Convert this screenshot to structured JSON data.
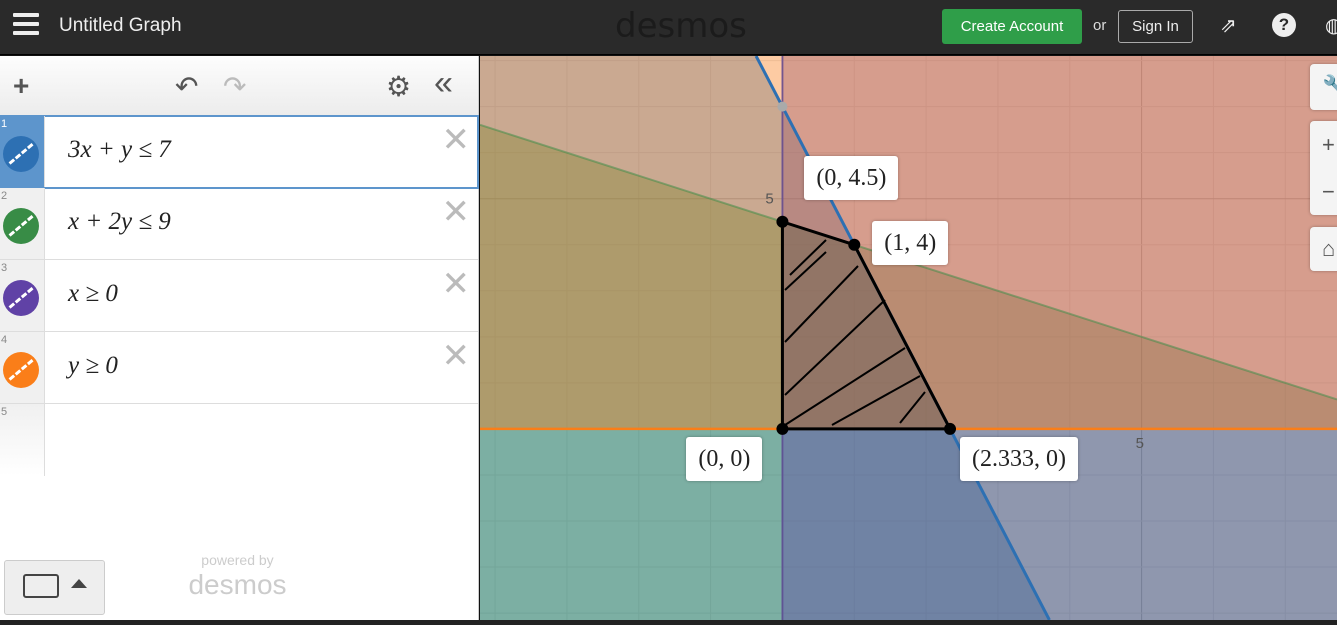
{
  "header": {
    "title": "Untitled Graph",
    "logo": "desmos",
    "create_account": "Create Account",
    "or": "or",
    "sign_in": "Sign In",
    "icons": [
      "menu-icon",
      "share-icon",
      "help-icon"
    ]
  },
  "toolbar": {
    "add": "+",
    "undo": "↶",
    "redo": "↷",
    "settings": "⚙",
    "collapse": "«"
  },
  "expressions": [
    {
      "n": "1",
      "latex": "3x + y ≤ 7",
      "color": "#2d70b3"
    },
    {
      "n": "2",
      "latex": "x + 2y ≤ 9",
      "color": "#388c46"
    },
    {
      "n": "3",
      "latex": "x ≥ 0",
      "color": "#6042a6"
    },
    {
      "n": "4",
      "latex": "y ≥ 0",
      "color": "#fa7e19"
    },
    {
      "n": "5",
      "latex": "",
      "color": ""
    }
  ],
  "powered": {
    "line1": "powered by",
    "line2": "desmos"
  },
  "graph": {
    "xlim": [
      -4.21,
      7.72
    ],
    "ylim": [
      -4.15,
      8.1
    ],
    "tick_labels": {
      "x5": "5",
      "y5": "5"
    },
    "points": [
      {
        "label": "(0, 4.5)",
        "x": 0,
        "y": 4.5
      },
      {
        "label": "(1, 4)",
        "x": 1,
        "y": 4
      },
      {
        "label": "(0, 0)",
        "x": 0,
        "y": 0
      },
      {
        "label": "(2.333, 0)",
        "x": 2.333,
        "y": 0
      }
    ]
  }
}
